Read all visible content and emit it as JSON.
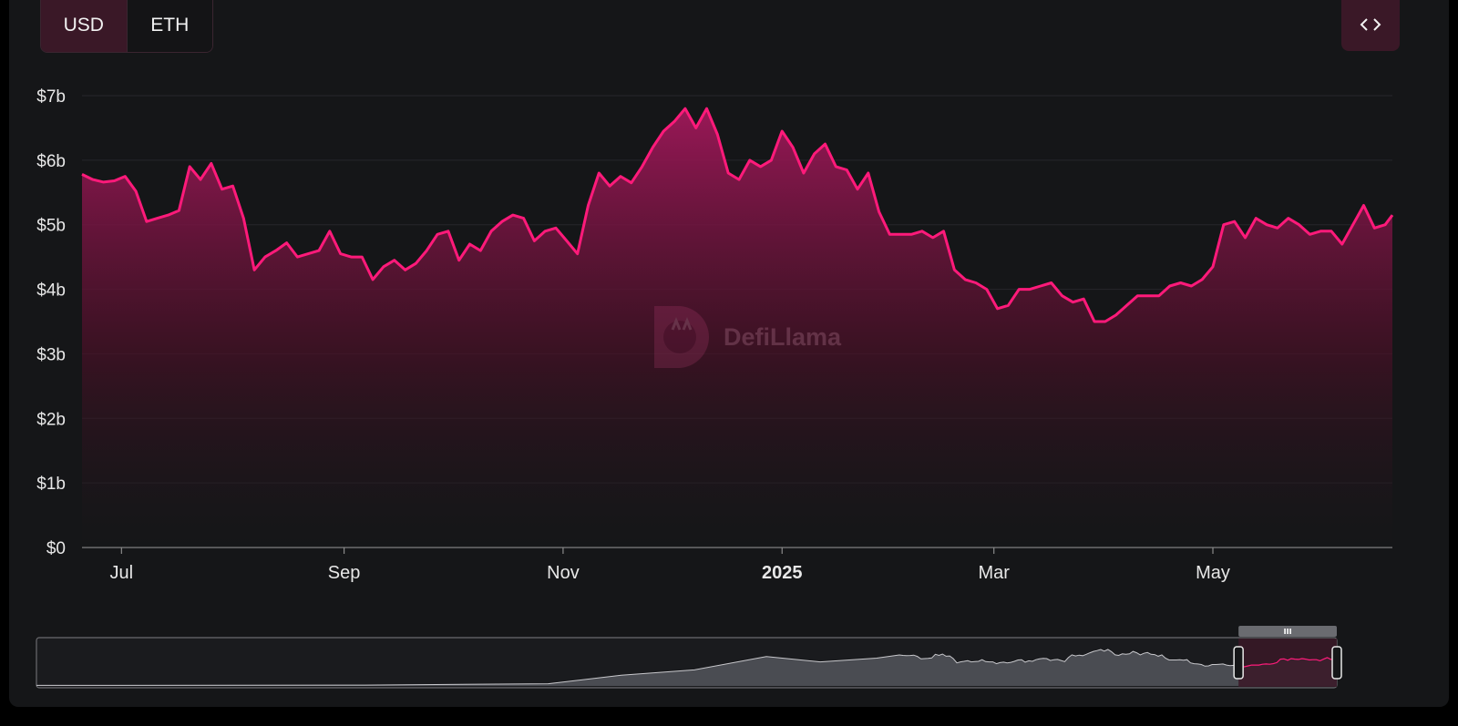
{
  "toggle": {
    "usd_label": "USD",
    "eth_label": "ETH",
    "selected": "USD"
  },
  "embed_icon": "code-brackets-icon",
  "watermark": {
    "text": "DefiLlama",
    "icon": "llama-logo-icon"
  },
  "colors": {
    "line": "#ff1a7a",
    "area_top": "#a0185a",
    "background": "#151618",
    "brush_fill": "#4a4c52",
    "brush_selection": "#3a1827"
  },
  "chart_data": {
    "type": "area",
    "title": "",
    "xlabel": "",
    "ylabel": "",
    "ylim": [
      0,
      7000000000
    ],
    "y_ticks": [
      {
        "value": 0,
        "label": "$0"
      },
      {
        "value": 1000000000,
        "label": "$1b"
      },
      {
        "value": 2000000000,
        "label": "$2b"
      },
      {
        "value": 3000000000,
        "label": "$3b"
      },
      {
        "value": 4000000000,
        "label": "$4b"
      },
      {
        "value": 5000000000,
        "label": "$5b"
      },
      {
        "value": 6000000000,
        "label": "$6b"
      },
      {
        "value": 7000000000,
        "label": "$7b"
      }
    ],
    "xlim": [
      "2024-06-20",
      "2025-06-20"
    ],
    "x_ticks": [
      {
        "date": "2024-07-01",
        "label": "Jul",
        "bold": false
      },
      {
        "date": "2024-09-01",
        "label": "Sep",
        "bold": false
      },
      {
        "date": "2024-11-01",
        "label": "Nov",
        "bold": false
      },
      {
        "date": "2025-01-01",
        "label": "2025",
        "bold": true
      },
      {
        "date": "2025-03-01",
        "label": "Mar",
        "bold": false
      },
      {
        "date": "2025-05-01",
        "label": "May",
        "bold": false
      }
    ],
    "grid": true,
    "series": [
      {
        "x": [
          "2024-06-20",
          "2024-06-23",
          "2024-06-26",
          "2024-06-29",
          "2024-07-02",
          "2024-07-05",
          "2024-07-08",
          "2024-07-11",
          "2024-07-14",
          "2024-07-17",
          "2024-07-20",
          "2024-07-23",
          "2024-07-26",
          "2024-07-29",
          "2024-08-01",
          "2024-08-04",
          "2024-08-07",
          "2024-08-10",
          "2024-08-13",
          "2024-08-16",
          "2024-08-19",
          "2024-08-22",
          "2024-08-25",
          "2024-08-28",
          "2024-08-31",
          "2024-09-03",
          "2024-09-06",
          "2024-09-09",
          "2024-09-12",
          "2024-09-15",
          "2024-09-18",
          "2024-09-21",
          "2024-09-24",
          "2024-09-27",
          "2024-09-30",
          "2024-10-03",
          "2024-10-06",
          "2024-10-09",
          "2024-10-12",
          "2024-10-15",
          "2024-10-18",
          "2024-10-21",
          "2024-10-24",
          "2024-10-27",
          "2024-10-30",
          "2024-11-02",
          "2024-11-05",
          "2024-11-08",
          "2024-11-11",
          "2024-11-14",
          "2024-11-17",
          "2024-11-20",
          "2024-11-23",
          "2024-11-26",
          "2024-11-29",
          "2024-12-02",
          "2024-12-05",
          "2024-12-08",
          "2024-12-11",
          "2024-12-14",
          "2024-12-17",
          "2024-12-20",
          "2024-12-23",
          "2024-12-26",
          "2024-12-29",
          "2025-01-01",
          "2025-01-04",
          "2025-01-07",
          "2025-01-10",
          "2025-01-13",
          "2025-01-16",
          "2025-01-19",
          "2025-01-22",
          "2025-01-25",
          "2025-01-28",
          "2025-01-31",
          "2025-02-03",
          "2025-02-06",
          "2025-02-09",
          "2025-02-12",
          "2025-02-15",
          "2025-02-18",
          "2025-02-21",
          "2025-02-24",
          "2025-02-27",
          "2025-03-02",
          "2025-03-05",
          "2025-03-08",
          "2025-03-11",
          "2025-03-14",
          "2025-03-17",
          "2025-03-20",
          "2025-03-23",
          "2025-03-26",
          "2025-03-29",
          "2025-04-01",
          "2025-04-04",
          "2025-04-07",
          "2025-04-10",
          "2025-04-13",
          "2025-04-16",
          "2025-04-19",
          "2025-04-22",
          "2025-04-25",
          "2025-04-28",
          "2025-05-01",
          "2025-05-04",
          "2025-05-07",
          "2025-05-10",
          "2025-05-13",
          "2025-05-16",
          "2025-05-19",
          "2025-05-22",
          "2025-05-25",
          "2025-05-28",
          "2025-05-31",
          "2025-06-03",
          "2025-06-06",
          "2025-06-09",
          "2025-06-12",
          "2025-06-15",
          "2025-06-18",
          "2025-06-20"
        ],
        "values": [
          5780000000.0,
          5700000000.0,
          5660000000.0,
          5680000000.0,
          5750000000.0,
          5520000000.0,
          5050000000.0,
          5100000000.0,
          5150000000.0,
          5220000000.0,
          5900000000.0,
          5700000000.0,
          5950000000.0,
          5550000000.0,
          5600000000.0,
          5100000000.0,
          4300000000.0,
          4500000000.0,
          4600000000.0,
          4720000000.0,
          4500000000.0,
          4550000000.0,
          4600000000.0,
          4900000000.0,
          4550000000.0,
          4500000000.0,
          4500000000.0,
          4150000000.0,
          4350000000.0,
          4450000000.0,
          4300000000.0,
          4400000000.0,
          4600000000.0,
          4850000000.0,
          4900000000.0,
          4450000000.0,
          4700000000.0,
          4600000000.0,
          4900000000.0,
          5050000000.0,
          5150000000.0,
          5100000000.0,
          4750000000.0,
          4900000000.0,
          4950000000.0,
          4750000000.0,
          4550000000.0,
          5300000000.0,
          5800000000.0,
          5600000000.0,
          5750000000.0,
          5650000000.0,
          5900000000.0,
          6200000000.0,
          6450000000.0,
          6600000000.0,
          6800000000.0,
          6500000000.0,
          6800000000.0,
          6400000000.0,
          5800000000.0,
          5700000000.0,
          6000000000.0,
          5900000000.0,
          6000000000.0,
          6450000000.0,
          6200000000.0,
          5800000000.0,
          6100000000.0,
          6250000000.0,
          5900000000.0,
          5850000000.0,
          5550000000.0,
          5800000000.0,
          5200000000.0,
          4850000000.0,
          4850000000.0,
          4850000000.0,
          4900000000.0,
          4800000000.0,
          4900000000.0,
          4300000000.0,
          4150000000.0,
          4100000000.0,
          4000000000.0,
          3700000000.0,
          3750000000.0,
          4000000000.0,
          4000000000.0,
          4050000000.0,
          4100000000.0,
          3900000000.0,
          3800000000.0,
          3850000000.0,
          3500000000.0,
          3500000000.0,
          3600000000.0,
          3750000000.0,
          3900000000.0,
          3900000000.0,
          3900000000.0,
          4050000000.0,
          4100000000.0,
          4050000000.0,
          4150000000.0,
          4350000000.0,
          5000000000.0,
          5050000000.0,
          4800000000.0,
          5100000000.0,
          5000000000.0,
          4950000000.0,
          5100000000.0,
          5000000000.0,
          4850000000.0,
          4900000000.0,
          4900000000.0,
          4700000000.0,
          5000000000.0,
          5300000000.0,
          4950000000.0,
          5000000000.0,
          5150000000.0
        ]
      }
    ],
    "brush": {
      "selection_start": "2025-03-30",
      "selection_end": "2025-06-20",
      "handle_icon": "grip-icon"
    }
  }
}
